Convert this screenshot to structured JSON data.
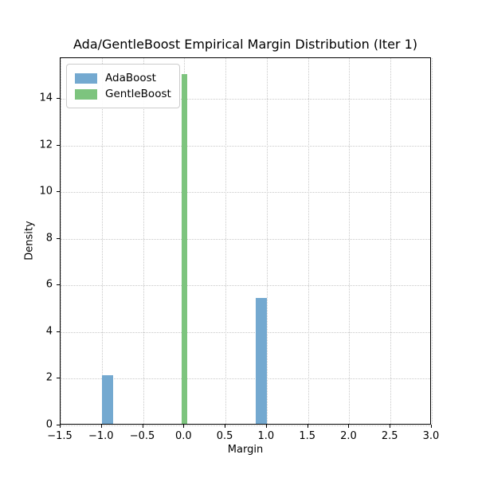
{
  "chart_data": {
    "type": "bar",
    "title": "Ada/GentleBoost Empirical Margin Distribution (Iter 1)",
    "xlabel": "Margin",
    "ylabel": "Density",
    "xlim": [
      -1.5,
      3.0
    ],
    "ylim": [
      0,
      15.75
    ],
    "grid": true,
    "grid_style": "dotted",
    "background_color": "#ffffff",
    "legend": {
      "position": "upper-left"
    },
    "xticks": [
      {
        "value": -1.5,
        "label": "−1.5"
      },
      {
        "value": -1.0,
        "label": "−1.0"
      },
      {
        "value": -0.5,
        "label": "−0.5"
      },
      {
        "value": 0.0,
        "label": "0.0"
      },
      {
        "value": 0.5,
        "label": "0.5"
      },
      {
        "value": 1.0,
        "label": "1.0"
      },
      {
        "value": 1.5,
        "label": "1.5"
      },
      {
        "value": 2.0,
        "label": "2.0"
      },
      {
        "value": 2.5,
        "label": "2.5"
      },
      {
        "value": 3.0,
        "label": "3.0"
      }
    ],
    "yticks": [
      {
        "value": 0,
        "label": "0"
      },
      {
        "value": 2,
        "label": "2"
      },
      {
        "value": 4,
        "label": "4"
      },
      {
        "value": 6,
        "label": "6"
      },
      {
        "value": 8,
        "label": "8"
      },
      {
        "value": 10,
        "label": "10"
      },
      {
        "value": 12,
        "label": "12"
      },
      {
        "value": 14,
        "label": "14"
      }
    ],
    "series": [
      {
        "name": "AdaBoost",
        "color": "#74a9d0",
        "bars": [
          {
            "x0": -1.0,
            "x1": -0.867,
            "density": 2.1
          },
          {
            "x0": 0.867,
            "x1": 1.0,
            "density": 5.4
          }
        ]
      },
      {
        "name": "GentleBoost",
        "color": "#7dc47e",
        "bars": [
          {
            "x0": -0.033,
            "x1": 0.033,
            "density": 15.0
          }
        ]
      }
    ]
  }
}
